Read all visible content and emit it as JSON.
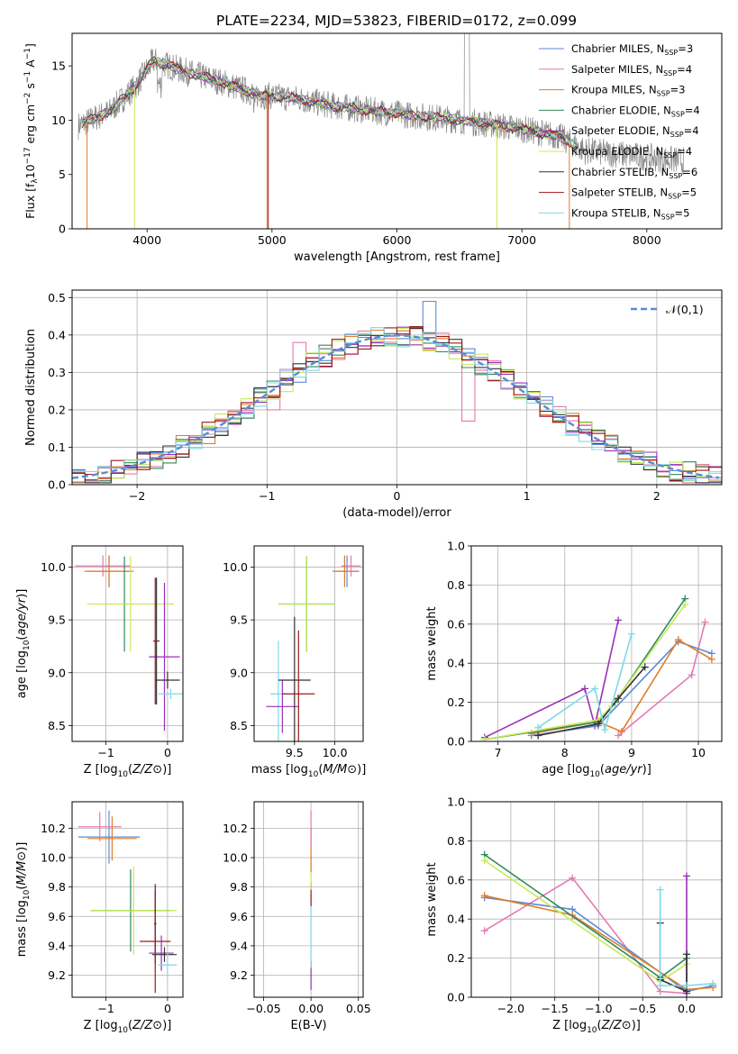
{
  "figure": {
    "title": "PLATE=2234, MJD=53823, FIBERID=0172, z=0.099"
  },
  "models": [
    {
      "label": "Chabrier MILES, N",
      "sub": "SSP",
      "tail": "=3",
      "color": "#5b8bd6"
    },
    {
      "label": "Salpeter MILES, N",
      "sub": "SSP",
      "tail": "=4",
      "color": "#e47ab4"
    },
    {
      "label": "Kroupa MILES, N",
      "sub": "SSP",
      "tail": "=3",
      "color": "#e07d2a"
    },
    {
      "label": "Chabrier ELODIE, N",
      "sub": "SSP",
      "tail": "=4",
      "color": "#2e8b57"
    },
    {
      "label": "Salpeter ELODIE, N",
      "sub": "SSP",
      "tail": "=4",
      "color": "#9b2fb8"
    },
    {
      "label": "Kroupa ELODIE, N",
      "sub": "SSP",
      "tail": "=4",
      "color": "#c8e85a"
    },
    {
      "label": "Chabrier STELIB, N",
      "sub": "SSP",
      "tail": "=6",
      "color": "#333333"
    },
    {
      "label": "Salpeter STELIB, N",
      "sub": "SSP",
      "tail": "=5",
      "color": "#a01818"
    },
    {
      "label": "Kroupa STELIB, N",
      "sub": "SSP",
      "tail": "=5",
      "color": "#7fd8e8"
    }
  ],
  "chart_data": [
    {
      "id": "spectrum",
      "type": "line",
      "xlabel": "wavelength [Angstrom, rest frame]",
      "ylabel": "Flux [f_λ10^-17 erg cm^-2 s^-1 A^-1]",
      "xlim": [
        3400,
        8600
      ],
      "ylim": [
        0,
        18
      ],
      "xticks": [
        4000,
        5000,
        6000,
        7000,
        8000
      ],
      "yticks": [
        0,
        5,
        10,
        15
      ],
      "grid": false,
      "legend": "upper-right",
      "observed_color": "#888888",
      "continuum": [
        [
          3450,
          9.5
        ],
        [
          3700,
          10.8
        ],
        [
          3900,
          13.0
        ],
        [
          4050,
          15.5
        ],
        [
          4300,
          14.5
        ],
        [
          4600,
          13.5
        ],
        [
          4900,
          12.3
        ],
        [
          5200,
          12.0
        ],
        [
          5500,
          11.3
        ],
        [
          6000,
          10.6
        ],
        [
          6500,
          10.0
        ],
        [
          7000,
          9.2
        ],
        [
          7300,
          8.5
        ],
        [
          7500,
          7.2
        ]
      ],
      "observed_extent": [
        3450,
        8300
      ]
    },
    {
      "id": "residuals",
      "type": "line",
      "xlabel": "(data-model)/error",
      "ylabel": "Normed distribution",
      "xlim": [
        -2.5,
        2.5
      ],
      "ylim": [
        0,
        0.52
      ],
      "xticks": [
        -2,
        -1,
        0,
        1,
        2
      ],
      "yticks": [
        0.0,
        0.1,
        0.2,
        0.3,
        0.4,
        0.5
      ],
      "grid": true,
      "legend": "upper-right",
      "reference_label": "𝒩(0,1)",
      "reference_color": "#5b8bd6",
      "bin_width": 0.1
    },
    {
      "id": "age-vs-Z",
      "type": "scatter",
      "xlabel": "Z [log10(Z/Z⊙)]",
      "ylabel": "age [log10(age/yr)]",
      "xlim": [
        -1.55,
        0.25
      ],
      "ylim": [
        8.35,
        10.2
      ],
      "xticks": [
        -1,
        0
      ],
      "yticks": [
        8.5,
        9.0,
        9.5,
        10.0
      ],
      "grid": true,
      "points": [
        {
          "m": 0,
          "x": -0.95,
          "y": 9.96,
          "xe": 0.35,
          "ye": 0.15
        },
        {
          "m": 1,
          "x": -1.05,
          "y": 10.01,
          "xe": 0.45,
          "ye": 0.1
        },
        {
          "m": 2,
          "x": -0.95,
          "y": 9.96,
          "xe": 0.4,
          "ye": 0.15
        },
        {
          "m": 3,
          "x": -0.7,
          "y": 9.65,
          "xe": 0.05,
          "ye": 0.45
        },
        {
          "m": 5,
          "x": -0.6,
          "y": 9.65,
          "xe": 0.7,
          "ye": 0.45
        },
        {
          "m": 4,
          "x": -0.05,
          "y": 9.15,
          "xe": 0.25,
          "ye": 0.7
        },
        {
          "m": 6,
          "x": -0.18,
          "y": 9.3,
          "xe": 0.05,
          "ye": 0.6
        },
        {
          "m": 7,
          "x": -0.2,
          "y": 9.3,
          "xe": 0.03,
          "ye": 0.6
        },
        {
          "m": 6,
          "x": 0.0,
          "y": 8.93,
          "xe": 0.2,
          "ye": 0.08
        },
        {
          "m": 8,
          "x": 0.05,
          "y": 8.8,
          "xe": 0.2,
          "ye": 0.05
        }
      ]
    },
    {
      "id": "age-vs-mass",
      "type": "scatter",
      "xlabel": "mass [log10(M/M⊙)]",
      "ylabel": "",
      "xlim": [
        9.0,
        10.35
      ],
      "ylim": [
        8.35,
        10.2
      ],
      "xticks": [
        9.5,
        10.0
      ],
      "yticks": [
        8.5,
        9.0,
        9.5,
        10.0
      ],
      "grid": true,
      "points": [
        {
          "m": 0,
          "x": 10.15,
          "y": 9.96,
          "xe": 0.15,
          "ye": 0.15
        },
        {
          "m": 1,
          "x": 10.2,
          "y": 10.01,
          "xe": 0.12,
          "ye": 0.1
        },
        {
          "m": 2,
          "x": 10.12,
          "y": 9.96,
          "xe": 0.15,
          "ye": 0.15
        },
        {
          "m": 3,
          "x": 9.65,
          "y": 9.65,
          "xe": 0.35,
          "ye": 0.45
        },
        {
          "m": 5,
          "x": 9.65,
          "y": 9.65,
          "xe": 0.35,
          "ye": 0.45
        },
        {
          "m": 8,
          "x": 9.3,
          "y": 8.8,
          "xe": 0.1,
          "ye": 0.5
        },
        {
          "m": 4,
          "x": 9.35,
          "y": 8.68,
          "xe": 0.2,
          "ye": 0.25
        },
        {
          "m": 6,
          "x": 9.5,
          "y": 8.93,
          "xe": 0.2,
          "ye": 0.6
        },
        {
          "m": 7,
          "x": 9.55,
          "y": 8.8,
          "xe": 0.2,
          "ye": 0.6
        }
      ]
    },
    {
      "id": "weight-vs-age",
      "type": "line",
      "xlabel": "age [log10(age/yr)]",
      "ylabel": "mass weight",
      "xlim": [
        6.6,
        10.35
      ],
      "ylim": [
        0,
        1.0
      ],
      "xticks": [
        7,
        8,
        9,
        10
      ],
      "yticks": [
        0.0,
        0.2,
        0.4,
        0.6,
        0.8,
        1.0
      ],
      "grid": true,
      "series": [
        {
          "m": 4,
          "x": [
            6.8,
            8.3,
            8.45,
            8.8
          ],
          "y": [
            0.02,
            0.27,
            0.08,
            0.62
          ]
        },
        {
          "m": 1,
          "x": [
            8.8,
            9.9,
            10.1
          ],
          "y": [
            0.03,
            0.34,
            0.61
          ]
        },
        {
          "m": 0,
          "x": [
            7.5,
            8.5,
            9.7,
            10.2
          ],
          "y": [
            0.03,
            0.08,
            0.51,
            0.45
          ]
        },
        {
          "m": 2,
          "x": [
            7.5,
            8.5,
            8.85,
            9.7,
            10.2
          ],
          "y": [
            0.04,
            0.1,
            0.05,
            0.52,
            0.42
          ]
        },
        {
          "m": 3,
          "x": [
            6.8,
            8.5,
            8.75,
            9.8
          ],
          "y": [
            0.01,
            0.1,
            0.2,
            0.73
          ]
        },
        {
          "m": 5,
          "x": [
            6.8,
            8.5,
            8.7,
            9.8
          ],
          "y": [
            0.01,
            0.11,
            0.18,
            0.7
          ]
        },
        {
          "m": 6,
          "x": [
            7.6,
            8.5,
            8.8,
            9.2
          ],
          "y": [
            0.03,
            0.09,
            0.22,
            0.38
          ]
        },
        {
          "m": 8,
          "x": [
            7.6,
            8.45,
            8.6,
            9.0
          ],
          "y": [
            0.07,
            0.27,
            0.06,
            0.55
          ]
        }
      ]
    },
    {
      "id": "mass-vs-Z",
      "type": "scatter",
      "xlabel": "Z [log10(Z/Z⊙)]",
      "ylabel": "mass [log10(M/M⊙)]",
      "xlim": [
        -1.55,
        0.25
      ],
      "ylim": [
        9.05,
        10.38
      ],
      "xticks": [
        -1,
        0
      ],
      "yticks": [
        9.2,
        9.4,
        9.6,
        9.8,
        10.0,
        10.2
      ],
      "grid": true,
      "points": [
        {
          "m": 0,
          "x": -0.95,
          "y": 10.14,
          "xe": 0.5,
          "ye": 0.18
        },
        {
          "m": 1,
          "x": -1.1,
          "y": 10.21,
          "xe": 0.35,
          "ye": 0.1
        },
        {
          "m": 2,
          "x": -0.9,
          "y": 10.13,
          "xe": 0.4,
          "ye": 0.15
        },
        {
          "m": 3,
          "x": -0.6,
          "y": 9.64,
          "xe": 0.65,
          "ye": 0.28
        },
        {
          "m": 5,
          "x": -0.55,
          "y": 9.64,
          "xe": 0.7,
          "ye": 0.3
        },
        {
          "m": 6,
          "x": -0.2,
          "y": 9.55,
          "xe": 0.02,
          "ye": 0.27
        },
        {
          "m": 7,
          "x": -0.2,
          "y": 9.43,
          "xe": 0.25,
          "ye": 0.35
        },
        {
          "m": 4,
          "x": -0.1,
          "y": 9.35,
          "xe": 0.2,
          "ye": 0.12
        },
        {
          "m": 6,
          "x": -0.05,
          "y": 9.34,
          "xe": 0.2,
          "ye": 0.05
        },
        {
          "m": 8,
          "x": 0.0,
          "y": 9.27,
          "xe": 0.15,
          "ye": 0.08
        }
      ]
    },
    {
      "id": "ebv",
      "type": "scatter",
      "xlabel": "E(B-V)",
      "ylabel": "",
      "xlim": [
        -0.06,
        0.055
      ],
      "ylim": [
        9.05,
        10.38
      ],
      "xticks": [
        -0.05,
        0.0,
        0.05
      ],
      "xticklabels": [
        "−0.05",
        "0.00",
        "0.05"
      ],
      "yticks": [
        9.2,
        9.4,
        9.6,
        9.8,
        10.0,
        10.2
      ],
      "grid": true,
      "points": [
        {
          "m": 4,
          "x": 0.0,
          "y": 9.2,
          "xe": 0,
          "ye": 0.1
        },
        {
          "m": 8,
          "x": 0.0,
          "y": 9.5,
          "xe": 0,
          "ye": 0.25
        },
        {
          "m": 7,
          "x": 0.0,
          "y": 9.75,
          "xe": 0,
          "ye": 0.08
        },
        {
          "m": 5,
          "x": 0.0,
          "y": 9.9,
          "xe": 0,
          "ye": 0.12
        },
        {
          "m": 2,
          "x": 0.0,
          "y": 10.05,
          "xe": 0,
          "ye": 0.15
        },
        {
          "m": 1,
          "x": 0.0,
          "y": 10.2,
          "xe": 0,
          "ye": 0.12
        }
      ]
    },
    {
      "id": "weight-vs-Z",
      "type": "line",
      "xlabel": "Z [log10(Z/Z⊙)]",
      "ylabel": "mass weight",
      "xlim": [
        -2.45,
        0.4
      ],
      "ylim": [
        0,
        1.0
      ],
      "xticks": [
        -2.0,
        -1.5,
        -1.0,
        -0.5,
        0.0
      ],
      "yticks": [
        0.0,
        0.2,
        0.4,
        0.6,
        0.8,
        1.0
      ],
      "grid": true,
      "series": [
        {
          "m": 1,
          "x": [
            -2.3,
            -1.3,
            -0.3,
            0.0
          ],
          "y": [
            0.34,
            0.61,
            0.03,
            0.02
          ]
        },
        {
          "m": 0,
          "x": [
            -2.3,
            -1.3,
            0.0,
            0.3
          ],
          "y": [
            0.51,
            0.45,
            0.03,
            0.06
          ]
        },
        {
          "m": 2,
          "x": [
            -2.3,
            -1.3,
            0.0,
            0.3
          ],
          "y": [
            0.52,
            0.42,
            0.04,
            0.05
          ]
        },
        {
          "m": 3,
          "x": [
            -2.3,
            -0.3,
            0.0
          ],
          "y": [
            0.73,
            0.1,
            0.2
          ]
        },
        {
          "m": 5,
          "x": [
            -2.3,
            -0.3,
            0.0
          ],
          "y": [
            0.7,
            0.08,
            0.17
          ]
        },
        {
          "m": 4,
          "x": [
            0.0,
            0.0
          ],
          "y": [
            0.02,
            0.62
          ]
        },
        {
          "m": 6,
          "x": [
            -0.3,
            -0.3,
            0.0,
            0.0
          ],
          "y": [
            0.38,
            0.09,
            0.03,
            0.22
          ]
        },
        {
          "m": 8,
          "x": [
            -0.3,
            -0.3,
            0.0,
            0.3
          ],
          "y": [
            0.55,
            0.06,
            0.06,
            0.07
          ]
        }
      ]
    }
  ]
}
